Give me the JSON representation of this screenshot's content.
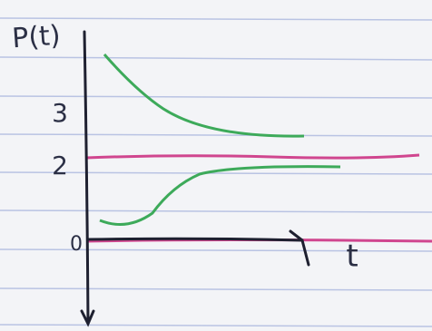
{
  "graph": {
    "y_label": "P(t)",
    "x_label": "t",
    "ticks": [
      "3",
      "2",
      "0"
    ]
  }
}
